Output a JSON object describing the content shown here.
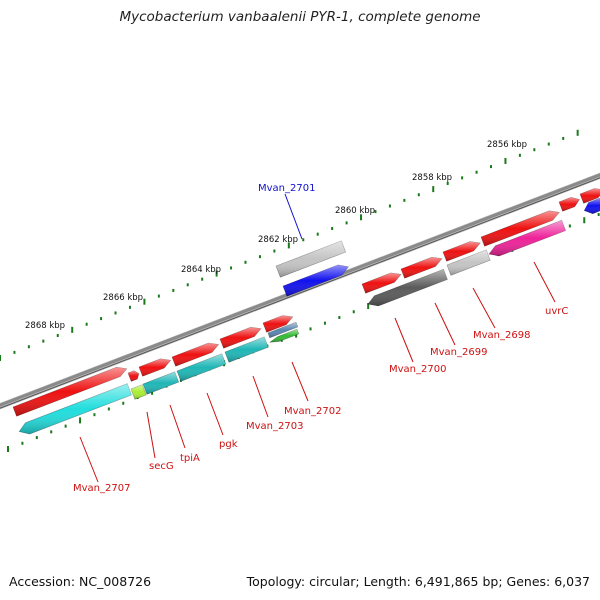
{
  "title": "Mycobacterium vanbaalenii PYR-1, complete genome",
  "footer": {
    "accession": "Accession: NC_008726",
    "topology": "Topology: circular; Length: 6,491,865 bp; Genes: 6,037"
  },
  "ruler": {
    "labels": [
      "2868 kbp",
      "2866 kbp",
      "2864 kbp",
      "2862 kbp",
      "2860 kbp",
      "2858 kbp",
      "2856 kbp"
    ]
  },
  "colors": {
    "backbone": "#8a8a8a",
    "cds_forward": "#ee1111",
    "cds_reverse_cyan": "#22dddd",
    "cds_teal": "#1fb6b6",
    "cds_lime": "#aaee33",
    "cds_green": "#33bb33",
    "cds_steel": "#5a86b0",
    "cds_blue": "#1111ee",
    "cds_gray": "#c4c4c4",
    "cds_dark_gray": "#5a5a5a",
    "cds_pink": "#ee2299",
    "tick_green": "#1a7a1a",
    "label_red": "#cc1111",
    "label_blue": "#1111cc"
  },
  "genes": [
    {
      "name": "Mvan_2707",
      "color": "#cc1111"
    },
    {
      "name": "secG",
      "color": "#cc1111"
    },
    {
      "name": "tpiA",
      "color": "#cc1111"
    },
    {
      "name": "pgk",
      "color": "#cc1111"
    },
    {
      "name": "Mvan_2703",
      "color": "#cc1111"
    },
    {
      "name": "Mvan_2702",
      "color": "#cc1111"
    },
    {
      "name": "Mvan_2701",
      "color": "#1111cc"
    },
    {
      "name": "Mvan_2700",
      "color": "#cc1111"
    },
    {
      "name": "Mvan_2699",
      "color": "#cc1111"
    },
    {
      "name": "Mvan_2698",
      "color": "#cc1111"
    },
    {
      "name": "uvrC",
      "color": "#cc1111"
    }
  ]
}
